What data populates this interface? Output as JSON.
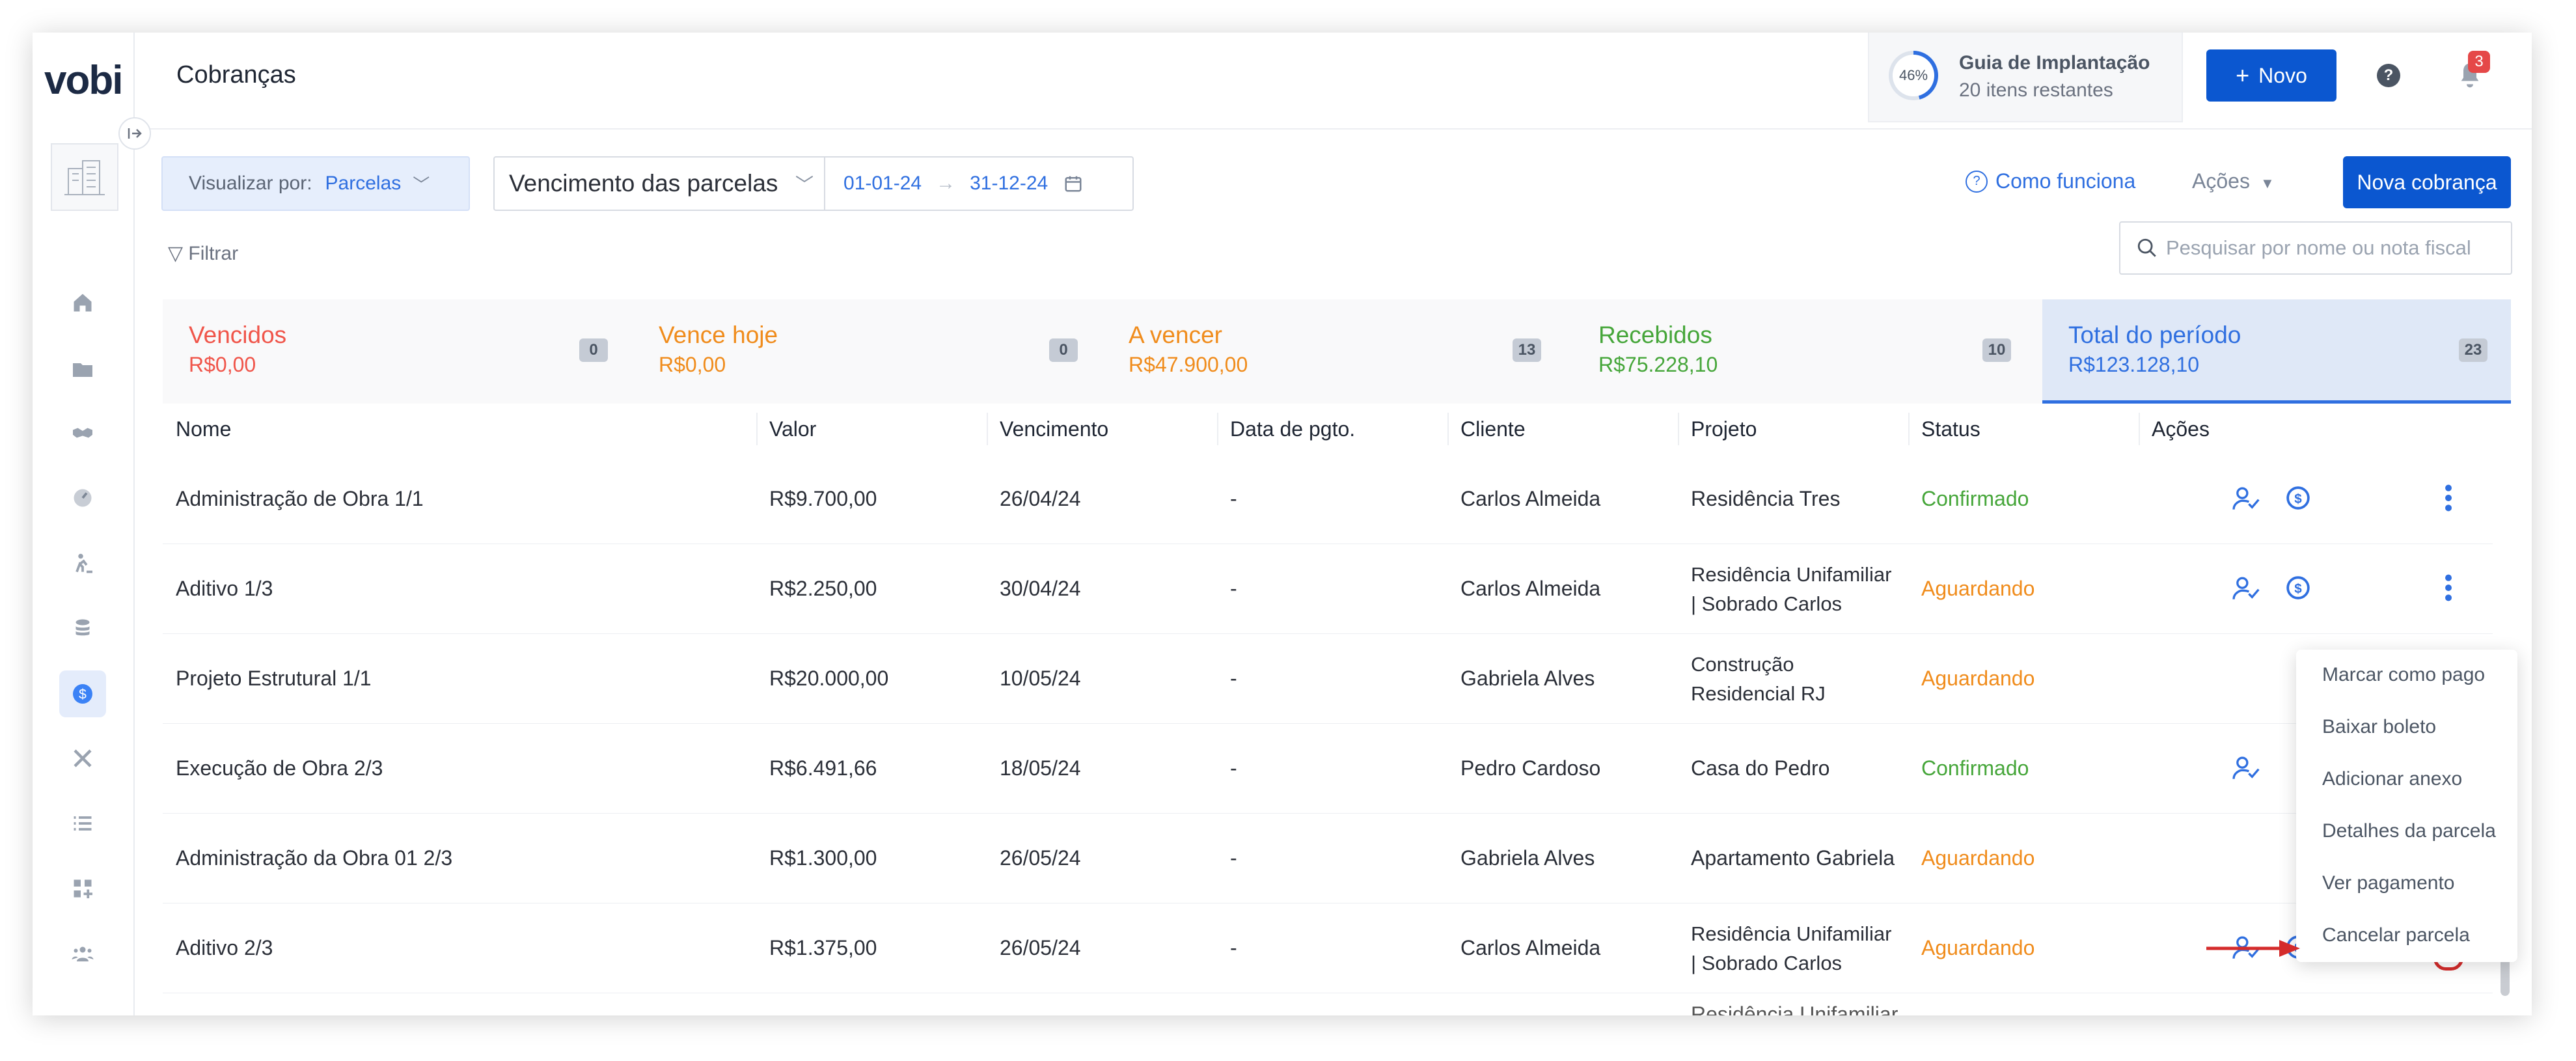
{
  "app": {
    "logo": "vobi",
    "page_title": "Cobranças"
  },
  "guide": {
    "percent": "46%",
    "progress": 0.46,
    "title": "Guia de Implantação",
    "subtitle": "20 itens restantes"
  },
  "header": {
    "new_button": "Novo",
    "notifications_count": "3"
  },
  "toolbar": {
    "view_label": "Visualizar por:",
    "view_value": "Parcelas",
    "period_select": "Vencimento das parcelas",
    "date_start": "01-01-24",
    "date_end": "31-12-24",
    "how_it_works": "Como funciona",
    "actions": "Ações",
    "new_charge": "Nova cobrança",
    "filter": "Filtrar",
    "search_placeholder": "Pesquisar por nome ou nota fiscal"
  },
  "summary": [
    {
      "title": "Vencidos",
      "value": "R$0,00",
      "count": "0",
      "color": "#f0554a"
    },
    {
      "title": "Vence hoje",
      "value": "R$0,00",
      "count": "0",
      "color": "#f08c1c"
    },
    {
      "title": "A vencer",
      "value": "R$47.900,00",
      "count": "13",
      "color": "#f08c1c"
    },
    {
      "title": "Recebidos",
      "value": "R$75.228,10",
      "count": "10",
      "color": "#46a63a"
    },
    {
      "title": "Total do período",
      "value": "R$123.128,10",
      "count": "23",
      "color": "#2f6fe0"
    }
  ],
  "table": {
    "columns": [
      "Nome",
      "Valor",
      "Vencimento",
      "Data de pgto.",
      "Cliente",
      "Projeto",
      "Status",
      "Ações"
    ],
    "rows": [
      {
        "nome": "Administração de Obra 1/1",
        "valor": "R$9.700,00",
        "vencimento": "26/04/24",
        "pgto": "-",
        "cliente": "Carlos Almeida",
        "projeto_1": "Residência Tres",
        "projeto_2": "",
        "status": "Confirmado"
      },
      {
        "nome": "Aditivo 1/3",
        "valor": "R$2.250,00",
        "vencimento": "30/04/24",
        "pgto": "-",
        "cliente": "Carlos Almeida",
        "projeto_1": "Residência Unifamiliar",
        "projeto_2": "| Sobrado Carlos",
        "status": "Aguardando"
      },
      {
        "nome": "Projeto Estrutural 1/1",
        "valor": "R$20.000,00",
        "vencimento": "10/05/24",
        "pgto": "-",
        "cliente": "Gabriela Alves",
        "projeto_1": "Construção",
        "projeto_2": "Residencial RJ",
        "status": "Aguardando"
      },
      {
        "nome": "Execução de Obra 2/3",
        "valor": "R$6.491,66",
        "vencimento": "18/05/24",
        "pgto": "-",
        "cliente": "Pedro Cardoso",
        "projeto_1": "Casa do Pedro",
        "projeto_2": "",
        "status": "Confirmado"
      },
      {
        "nome": "Administração da Obra 01 2/3",
        "valor": "R$1.300,00",
        "vencimento": "26/05/24",
        "pgto": "-",
        "cliente": "Gabriela Alves",
        "projeto_1": "Apartamento Gabriela",
        "projeto_2": "",
        "status": "Aguardando"
      },
      {
        "nome": "Aditivo 2/3",
        "valor": "R$1.375,00",
        "vencimento": "26/05/24",
        "pgto": "-",
        "cliente": "Carlos Almeida",
        "projeto_1": "Residência Unifamiliar",
        "projeto_2": "| Sobrado Carlos",
        "status": "Aguardando"
      },
      {
        "nome": "",
        "valor": "",
        "vencimento": "",
        "pgto": "",
        "cliente": "",
        "projeto_1": "Residência Unifamiliar",
        "projeto_2": "",
        "status": ""
      }
    ]
  },
  "menu": {
    "items": [
      "Marcar como pago",
      "Baixar boleto",
      "Adicionar anexo",
      "Detalhes da parcela",
      "Ver pagamento",
      "Cancelar parcela"
    ]
  },
  "colors": {
    "primary": "#0b57d0",
    "accent": "#2f6fe0",
    "confirmed": "#46a63a",
    "waiting": "#f08c1c",
    "highlight": "#d42b2b"
  },
  "sidebar_icons": [
    "home-icon",
    "folder-icon",
    "handshake-icon",
    "gauge-icon",
    "worker-icon",
    "coins-icon",
    "dollar-icon",
    "tools-icon",
    "list-icon",
    "apps-icon",
    "team-icon"
  ]
}
